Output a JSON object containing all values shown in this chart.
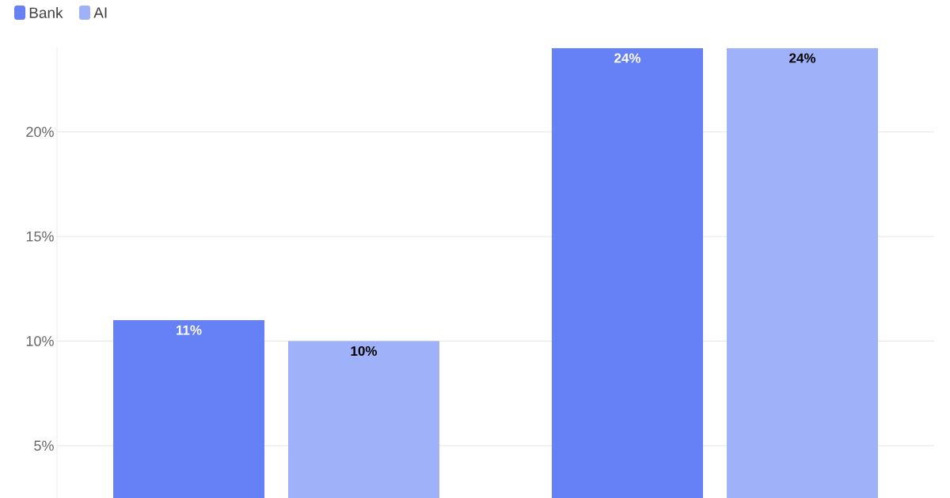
{
  "chart_data": {
    "type": "bar",
    "categories": [
      null,
      null
    ],
    "series": [
      {
        "name": "Bank",
        "color": "#6680f5",
        "values": [
          11,
          24
        ],
        "value_labels": [
          "11%",
          "24%"
        ]
      },
      {
        "name": "AI",
        "color": "#9fb1f8",
        "values": [
          10,
          24
        ],
        "value_labels": [
          "10%",
          "24%"
        ]
      }
    ],
    "ylim": [
      2.5,
      24
    ],
    "yticks": [
      {
        "value": 5,
        "label": "5%"
      },
      {
        "value": 10,
        "label": "10%"
      },
      {
        "value": 15,
        "label": "15%"
      },
      {
        "value": 20,
        "label": "20%"
      }
    ],
    "grid": "y",
    "legend": "top left"
  }
}
